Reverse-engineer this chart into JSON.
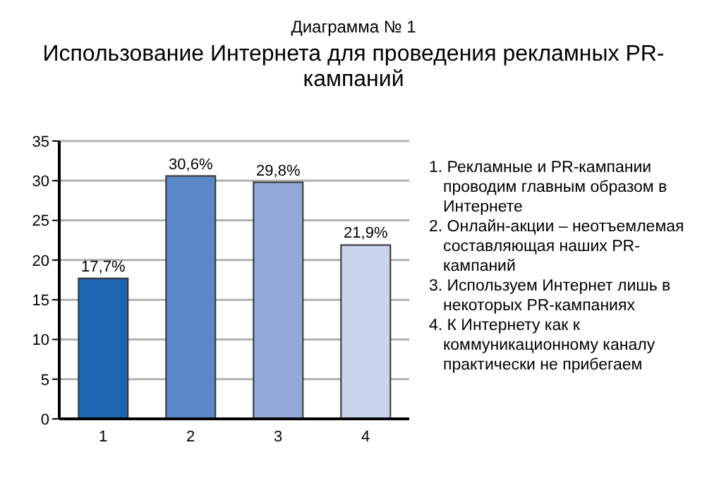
{
  "chart_data": {
    "type": "bar",
    "title": "Диаграмма № 1",
    "subtitle": "Использование Интернета для проведения рекламных PR-кампаний",
    "categories": [
      "1",
      "2",
      "3",
      "4"
    ],
    "values": [
      17.7,
      30.6,
      29.8,
      21.9
    ],
    "colors": [
      "#1f66b0",
      "#5a88c8",
      "#93a9d8",
      "#c9d3ec"
    ],
    "value_labels": [
      "17,7%",
      "30,6%",
      "29,8%",
      "21,9%"
    ],
    "ylim": [
      0,
      35
    ],
    "yticks": [
      0,
      5,
      10,
      15,
      20,
      25,
      30,
      35
    ],
    "grid": "y",
    "annotations": [
      "1. Рекламные и PR-кампании проводим главным образом в Интернете",
      "2. Онлайн-акции – неотъемлемая составляющая наших PR-кампаний",
      "3. Используем Интернет лишь в некоторых PR-кампаниях",
      "4. К Интернету как к коммуникационному каналу практически не прибегаем"
    ]
  }
}
